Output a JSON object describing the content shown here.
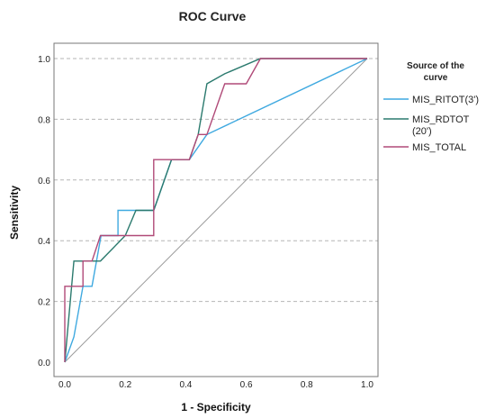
{
  "chart_data": {
    "type": "line",
    "title": "ROC Curve",
    "xlabel": "1 - Specificity",
    "ylabel": "Sensitivity",
    "xlim": [
      0,
      1
    ],
    "ylim": [
      0,
      1
    ],
    "xticks": [
      "0.0",
      "0.2",
      "0.4",
      "0.6",
      "0.8",
      "1.0"
    ],
    "yticks": [
      "0.0",
      "0.2",
      "0.4",
      "0.6",
      "0.8",
      "1.0"
    ],
    "grid": "horizontal dashed",
    "legend": {
      "title": "Source of the curve",
      "placement": "right",
      "entries": [
        "MIS_RITOT(3')",
        "MIS_RDTOT (20')",
        "MIS_TOTAL"
      ]
    },
    "series": [
      {
        "name": "MIS_RITOT(3')",
        "color": "#3fa9e0",
        "points": [
          [
            0.0,
            0.0
          ],
          [
            0.03,
            0.083
          ],
          [
            0.06,
            0.25
          ],
          [
            0.09,
            0.25
          ],
          [
            0.12,
            0.417
          ],
          [
            0.176,
            0.417
          ],
          [
            0.176,
            0.5
          ],
          [
            0.235,
            0.5
          ],
          [
            0.235,
            0.5
          ],
          [
            0.294,
            0.5
          ],
          [
            0.353,
            0.667
          ],
          [
            0.412,
            0.667
          ],
          [
            0.47,
            0.75
          ],
          [
            1.0,
            1.0
          ]
        ]
      },
      {
        "name": "MIS_RDTOT (20')",
        "color": "#2b7a6e",
        "points": [
          [
            0.0,
            0.0
          ],
          [
            0.03,
            0.333
          ],
          [
            0.09,
            0.333
          ],
          [
            0.118,
            0.333
          ],
          [
            0.2,
            0.417
          ],
          [
            0.235,
            0.5
          ],
          [
            0.294,
            0.5
          ],
          [
            0.353,
            0.667
          ],
          [
            0.412,
            0.667
          ],
          [
            0.441,
            0.75
          ],
          [
            0.47,
            0.917
          ],
          [
            0.529,
            0.95
          ],
          [
            0.647,
            1.0
          ],
          [
            1.0,
            1.0
          ]
        ]
      },
      {
        "name": "MIS_TOTAL",
        "color": "#b04a78",
        "points": [
          [
            0.0,
            0.0
          ],
          [
            0.0,
            0.25
          ],
          [
            0.06,
            0.25
          ],
          [
            0.06,
            0.333
          ],
          [
            0.09,
            0.333
          ],
          [
            0.118,
            0.417
          ],
          [
            0.176,
            0.417
          ],
          [
            0.294,
            0.417
          ],
          [
            0.294,
            0.667
          ],
          [
            0.353,
            0.667
          ],
          [
            0.412,
            0.667
          ],
          [
            0.441,
            0.75
          ],
          [
            0.47,
            0.75
          ],
          [
            0.529,
            0.917
          ],
          [
            0.6,
            0.917
          ],
          [
            0.647,
            1.0
          ],
          [
            1.0,
            1.0
          ]
        ]
      }
    ]
  }
}
